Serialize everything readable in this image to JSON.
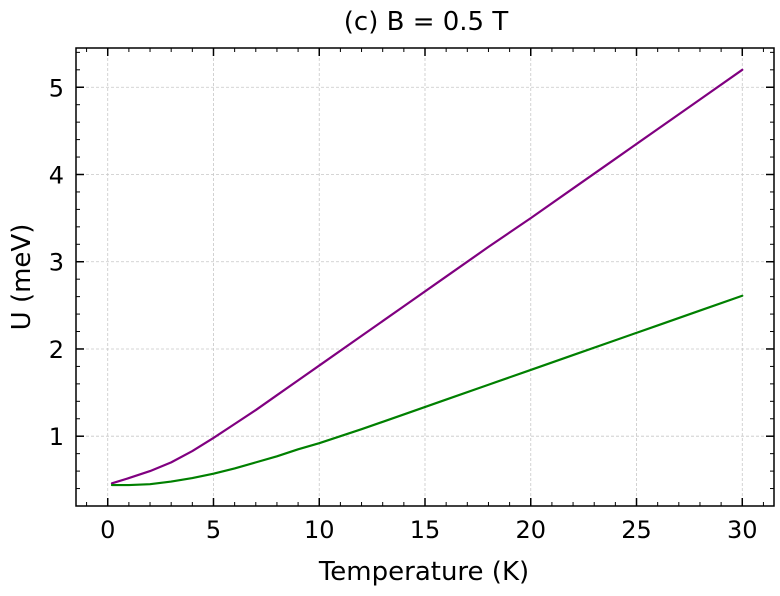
{
  "chart_data": {
    "type": "line",
    "title": "(c) B = 0.5 T",
    "xlabel": "Temperature (K)",
    "ylabel": "U (meV)",
    "xlim": [
      -1.5,
      31.5
    ],
    "ylim": [
      0.2,
      5.45
    ],
    "xticks": [
      0,
      5,
      10,
      15,
      20,
      25,
      30
    ],
    "yticks": [
      1,
      2,
      3,
      4,
      5
    ],
    "x_minor_step": 1,
    "y_minor_step": 0.2,
    "grid": true,
    "legend": "none",
    "series": [
      {
        "color": "#800080",
        "x": [
          0.2,
          1,
          2,
          3,
          4,
          5,
          6,
          7,
          8,
          9,
          10,
          12,
          14,
          16,
          18,
          20,
          22,
          24,
          26,
          28,
          30
        ],
        "y": [
          0.46,
          0.52,
          0.6,
          0.7,
          0.83,
          0.98,
          1.14,
          1.3,
          1.47,
          1.64,
          1.81,
          2.15,
          2.49,
          2.83,
          3.17,
          3.5,
          3.84,
          4.18,
          4.52,
          4.86,
          5.2
        ]
      },
      {
        "color": "#008000",
        "x": [
          0.2,
          1,
          2,
          3,
          4,
          5,
          6,
          7,
          8,
          9,
          10,
          12,
          14,
          16,
          18,
          20,
          22,
          24,
          26,
          28,
          30
        ],
        "y": [
          0.44,
          0.44,
          0.45,
          0.48,
          0.52,
          0.57,
          0.63,
          0.7,
          0.77,
          0.85,
          0.92,
          1.08,
          1.25,
          1.42,
          1.59,
          1.76,
          1.93,
          2.1,
          2.27,
          2.44,
          2.61
        ]
      }
    ]
  }
}
